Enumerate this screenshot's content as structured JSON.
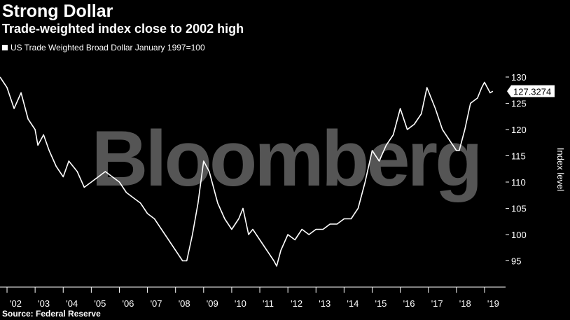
{
  "brand": {
    "watermark": "Bloomberg",
    "watermark_color": "#5a5a5a"
  },
  "colors": {
    "background": "#000000",
    "line": "#ffffff",
    "text": "#ffffff"
  },
  "chart_data": {
    "type": "line",
    "title": "Strong Dollar",
    "subtitle": "Trade-weighted index close to 2002 high",
    "source": "Source: Federal Reserve",
    "ylabel": "Index level",
    "ylim": [
      90,
      132
    ],
    "yticks": [
      95,
      100,
      105,
      110,
      115,
      120,
      125,
      130
    ],
    "xlim": [
      2001.75,
      2019.75
    ],
    "xticks": [
      {
        "x": 2002,
        "label": "'02"
      },
      {
        "x": 2003,
        "label": "'03"
      },
      {
        "x": 2004,
        "label": "'04"
      },
      {
        "x": 2005,
        "label": "'05"
      },
      {
        "x": 2006,
        "label": "'06"
      },
      {
        "x": 2007,
        "label": "'07"
      },
      {
        "x": 2008,
        "label": "'08"
      },
      {
        "x": 2009,
        "label": "'09"
      },
      {
        "x": 2010,
        "label": "'10"
      },
      {
        "x": 2011,
        "label": "'11"
      },
      {
        "x": 2012,
        "label": "'12"
      },
      {
        "x": 2013,
        "label": "'13"
      },
      {
        "x": 2014,
        "label": "'14"
      },
      {
        "x": 2015,
        "label": "'15"
      },
      {
        "x": 2016,
        "label": "'16"
      },
      {
        "x": 2017,
        "label": "'17"
      },
      {
        "x": 2018,
        "label": "'18"
      },
      {
        "x": 2019,
        "label": "'19"
      }
    ],
    "grid": false,
    "legend_position": "top-left",
    "last_value_label": "127.3274",
    "series": [
      {
        "name": "US Trade Weighted Broad Dollar January 1997=100",
        "x": [
          2001.75,
          2002.0,
          2002.25,
          2002.5,
          2002.6,
          2002.75,
          2003.0,
          2003.1,
          2003.3,
          2003.5,
          2003.75,
          2004.0,
          2004.2,
          2004.5,
          2004.75,
          2005.0,
          2005.25,
          2005.5,
          2005.75,
          2006.0,
          2006.25,
          2006.5,
          2006.75,
          2007.0,
          2007.25,
          2007.5,
          2007.75,
          2008.0,
          2008.25,
          2008.4,
          2008.6,
          2008.8,
          2009.0,
          2009.2,
          2009.5,
          2009.75,
          2010.0,
          2010.25,
          2010.4,
          2010.6,
          2010.75,
          2011.0,
          2011.25,
          2011.5,
          2011.6,
          2011.75,
          2012.0,
          2012.25,
          2012.5,
          2012.75,
          2013.0,
          2013.25,
          2013.5,
          2013.75,
          2014.0,
          2014.25,
          2014.5,
          2014.75,
          2015.0,
          2015.25,
          2015.5,
          2015.75,
          2016.0,
          2016.25,
          2016.5,
          2016.75,
          2016.95,
          2017.25,
          2017.5,
          2017.75,
          2018.0,
          2018.1,
          2018.3,
          2018.5,
          2018.75,
          2018.9,
          2019.0,
          2019.2,
          2019.3
        ],
        "values": [
          130,
          128,
          124,
          127,
          125,
          122,
          120,
          117,
          119,
          116,
          113,
          111,
          114,
          112,
          109,
          110,
          111,
          112,
          111,
          110,
          108,
          107,
          106,
          104,
          103,
          101,
          99,
          97,
          95,
          95,
          100,
          106,
          114,
          112,
          106,
          103,
          101,
          103,
          105,
          100,
          101,
          99,
          97,
          95,
          94,
          97,
          100,
          99,
          101,
          100,
          101,
          101,
          102,
          102,
          103,
          103,
          105,
          110,
          116,
          114,
          117,
          119,
          124,
          120,
          121,
          123,
          128,
          124,
          120,
          118,
          116,
          116,
          120,
          125,
          126,
          128,
          129,
          127,
          127.3
        ]
      }
    ]
  }
}
